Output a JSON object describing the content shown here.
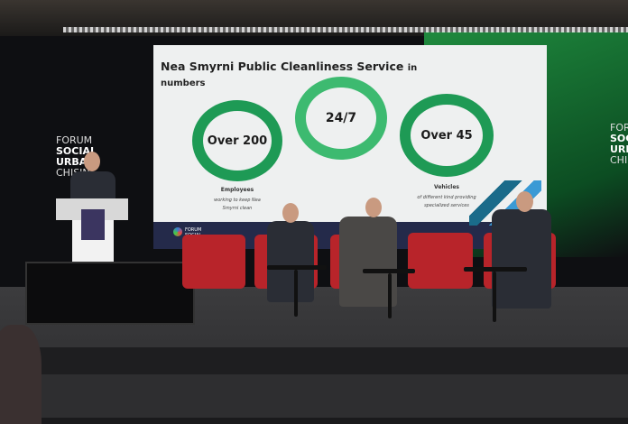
{
  "slide": {
    "title": "Nea Smyrni Public Cleanliness Service",
    "title_suffix": "in numbers",
    "stats": [
      {
        "value": "Over 200",
        "label": "Employees",
        "sub": "working to keep Nea Smyrni clean"
      },
      {
        "value": "24/7",
        "label": "",
        "sub": ""
      },
      {
        "value": "Over 45",
        "label": "Vehicles",
        "sub": "of different kind providing specialized services"
      }
    ],
    "ring_color": "#1e9a55",
    "footer_logo": "FORUM SOCIAL"
  },
  "left_banner": {
    "line1": "FORUM",
    "line2": "SOCIAL",
    "line3": "URBA",
    "line4": "CHIȘIN"
  },
  "right_banner": {
    "line1": "FORU",
    "line2": "SOCI",
    "line3": "URB",
    "line4": "CHIS"
  }
}
